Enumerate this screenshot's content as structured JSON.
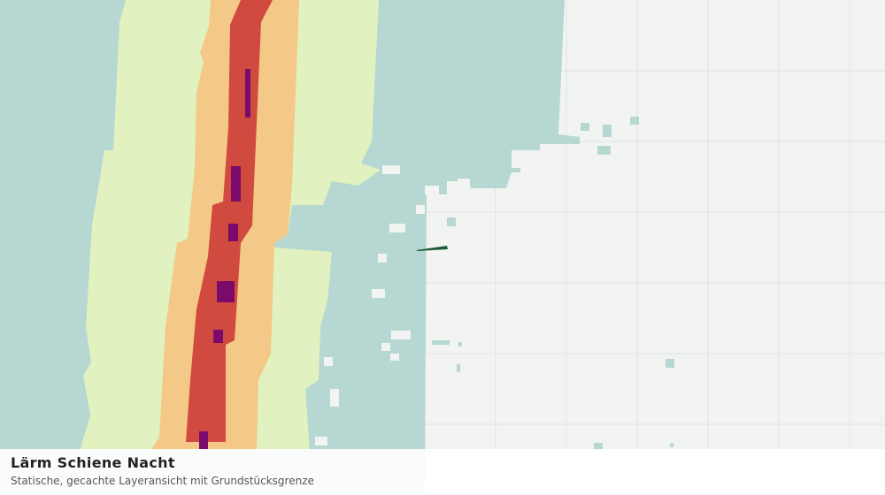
{
  "title": "Lärm Schiene Nacht",
  "subtitle": "Statische, gecachte Layeransicht mit Grundstücksgrenze"
}
